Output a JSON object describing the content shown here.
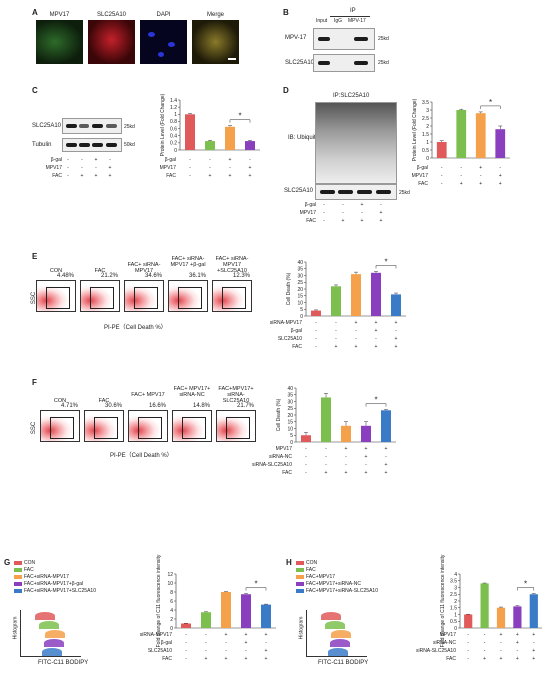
{
  "A": {
    "label": "A",
    "tiles": [
      "MPV17",
      "SLC25A10",
      "DAPI",
      "Merge"
    ]
  },
  "B": {
    "label": "B",
    "ip": "IP",
    "lanes": [
      "Input",
      "IgG",
      "MPV-17"
    ],
    "rows": [
      "MPV-17",
      "SLC25A10"
    ],
    "mw": [
      "25kd",
      "25kd"
    ]
  },
  "C": {
    "label": "C",
    "rows": [
      "SLC25A10",
      "Tubulin"
    ],
    "mw": [
      "25kd",
      "50kd"
    ],
    "treat_labels": [
      "β-gal",
      "MPV17",
      "FAC"
    ],
    "treat": [
      [
        "-",
        "-",
        "+",
        "-"
      ],
      [
        "-",
        "-",
        "-",
        "+"
      ],
      [
        "-",
        "+",
        "+",
        "+"
      ]
    ],
    "ylabel": "Protein Level (Fold Change)",
    "sig": "*",
    "chart_data": {
      "type": "bar",
      "values": [
        1.0,
        0.25,
        0.65,
        0.25
      ],
      "errors": [
        0.02,
        0.02,
        0.03,
        0.02
      ],
      "colors": [
        "#e05a5a",
        "#7dbf4e",
        "#f5a04a",
        "#8a3fbf"
      ],
      "ylim": [
        0,
        1.4
      ],
      "ticks": [
        "0",
        "0.2",
        "0.4",
        "0.6",
        "0.8",
        "1",
        "1.2",
        "1.4"
      ]
    }
  },
  "D": {
    "label": "D",
    "ip": "IP:SLC25A10",
    "ib": "IB: Ubiquitin",
    "row2": "SLC25A10",
    "mw": "25kd",
    "treat_labels": [
      "β-gal",
      "MPV17",
      "FAC"
    ],
    "treat": [
      [
        "-",
        "-",
        "+",
        "-"
      ],
      [
        "-",
        "-",
        "-",
        "+"
      ],
      [
        "-",
        "+",
        "+",
        "+"
      ]
    ],
    "ylabel": "Protein Level (Fold Change)",
    "sig": "*",
    "chart_data": {
      "type": "bar",
      "values": [
        1.0,
        3.0,
        2.8,
        1.8
      ],
      "errors": [
        0.08,
        0.05,
        0.08,
        0.2
      ],
      "colors": [
        "#e05a5a",
        "#7dbf4e",
        "#f5a04a",
        "#8a3fbf"
      ],
      "ylim": [
        0,
        3.5
      ],
      "ticks": [
        "0",
        "0.5",
        "1",
        "1.5",
        "2",
        "2.5",
        "3",
        "3.5"
      ]
    }
  },
  "E": {
    "label": "E",
    "ssc": "SSC",
    "xlab": "PI-PE（Cell Death %）",
    "plots": [
      {
        "cap": "CON",
        "pct": "4.48%"
      },
      {
        "cap": "FAC",
        "pct": "21.2%"
      },
      {
        "cap": "FAC+ siRNA-MPV17",
        "pct": "34.6%"
      },
      {
        "cap": "FAC+ siRNA-MPV17 +β-gal",
        "pct": "36.1%"
      },
      {
        "cap": "FAC+ siRNA-MPV17 +SLC25A10",
        "pct": "12.3%"
      }
    ],
    "treat_labels": [
      "siRNA-MPV17",
      "β-gal",
      "SLC25A10",
      "FAC"
    ],
    "treat": [
      [
        "-",
        "-",
        "+",
        "+",
        "+"
      ],
      [
        "-",
        "-",
        "-",
        "+",
        "-"
      ],
      [
        "-",
        "-",
        "-",
        "-",
        "+"
      ],
      [
        "-",
        "+",
        "+",
        "+",
        "+"
      ]
    ],
    "ylabel": "Cell Death (%)",
    "sig": "*",
    "chart_data": {
      "type": "bar",
      "values": [
        4,
        22,
        31,
        32,
        16
      ],
      "errors": [
        0.5,
        1,
        1.5,
        1,
        1
      ],
      "colors": [
        "#e05a5a",
        "#7dbf4e",
        "#f5a04a",
        "#8a3fbf",
        "#3a7bc8"
      ],
      "ylim": [
        0,
        40
      ],
      "ticks": [
        "0",
        "5",
        "10",
        "15",
        "20",
        "25",
        "30",
        "35",
        "40"
      ]
    }
  },
  "F": {
    "label": "F",
    "ssc": "SSC",
    "xlab": "PI-PE（Cell Death %）",
    "plots": [
      {
        "cap": "CON",
        "pct": "4.71%"
      },
      {
        "cap": "FAC",
        "pct": "30.6%"
      },
      {
        "cap": "FAC+ MPV17",
        "pct": "16.6%"
      },
      {
        "cap": "FAC+ MPV17+ siRNA-NC",
        "pct": "14.8%"
      },
      {
        "cap": "FAC+MPV17+ siRNA- SLC25A10",
        "pct": "21.7%"
      }
    ],
    "treat_labels": [
      "MPV17",
      "siRNA-NC",
      "siRNA-SLC25A10",
      "FAC"
    ],
    "treat": [
      [
        "-",
        "-",
        "+",
        "+",
        "+"
      ],
      [
        "-",
        "-",
        "-",
        "+",
        "-"
      ],
      [
        "-",
        "-",
        "-",
        "-",
        "+"
      ],
      [
        "-",
        "+",
        "+",
        "+",
        "+"
      ]
    ],
    "ylabel": "Cell Death (%)",
    "sig": "*",
    "chart_data": {
      "type": "bar",
      "values": [
        5,
        33,
        12,
        12,
        23.5
      ],
      "errors": [
        2,
        3,
        3,
        3,
        0.5
      ],
      "colors": [
        "#e05a5a",
        "#7dbf4e",
        "#f5a04a",
        "#8a3fbf",
        "#3a7bc8"
      ],
      "ylim": [
        0,
        40
      ],
      "ticks": [
        "0",
        "5",
        "10",
        "15",
        "20",
        "25",
        "30",
        "35",
        "40"
      ]
    }
  },
  "G": {
    "label": "G",
    "legend": [
      "CON",
      "FAC",
      "FAC+siRNA-MPV17",
      "FAC+siRNA-MPV17+β-gal",
      "FAC+siRNA-MPV17+SLC25A10"
    ],
    "hist_ylabel": "Histogram",
    "hist_xlabel": "FITC-C11 BODIPY",
    "treat_labels": [
      "siRNA-MPV17",
      "β-gal",
      "SLC25A10",
      "FAC"
    ],
    "treat": [
      [
        "-",
        "-",
        "+",
        "+",
        "+"
      ],
      [
        "-",
        "-",
        "-",
        "+",
        "-"
      ],
      [
        "-",
        "-",
        "-",
        "-",
        "+"
      ],
      [
        "-",
        "+",
        "+",
        "+",
        "+"
      ]
    ],
    "ylabel": "Fold change of C11 fluorescence intensity",
    "sig": "*",
    "chart_data": {
      "type": "bar",
      "values": [
        1.0,
        3.5,
        8.0,
        7.5,
        5.2
      ],
      "errors": [
        0.05,
        0.1,
        0.1,
        0.15,
        0.1
      ],
      "colors": [
        "#e05a5a",
        "#7dbf4e",
        "#f5a04a",
        "#8a3fbf",
        "#3a7bc8"
      ],
      "ylim": [
        0,
        12
      ],
      "ticks": [
        "0",
        "2",
        "4",
        "6",
        "8",
        "10",
        "12"
      ]
    }
  },
  "H": {
    "label": "H",
    "legend": [
      "CON",
      "FAC",
      "FAC+MPV17",
      "FAC+MPV17+siRNA-NC",
      "FAC+MPV17+siRNA-SLC25A10"
    ],
    "hist_ylabel": "Histogram",
    "hist_xlabel": "FITC-C11 BODIPY",
    "treat_labels": [
      "MPV17",
      "siRNA-NC",
      "siRNA-SLC25A10",
      "FAC"
    ],
    "treat": [
      [
        "-",
        "-",
        "+",
        "+",
        "+"
      ],
      [
        "-",
        "-",
        "-",
        "+",
        "-"
      ],
      [
        "-",
        "-",
        "-",
        "-",
        "+"
      ],
      [
        "-",
        "+",
        "+",
        "+",
        "+"
      ]
    ],
    "ylabel": "Fold change of C11 fluorescence intensity",
    "sig": "*",
    "chart_data": {
      "type": "bar",
      "values": [
        1.0,
        3.3,
        1.5,
        1.6,
        2.5
      ],
      "errors": [
        0.02,
        0.03,
        0.05,
        0.05,
        0.05
      ],
      "colors": [
        "#e05a5a",
        "#7dbf4e",
        "#f5a04a",
        "#8a3fbf",
        "#3a7bc8"
      ],
      "ylim": [
        0,
        4
      ],
      "ticks": [
        "0",
        "0.5",
        "1",
        "1.5",
        "2",
        "2.5",
        "3",
        "3.5",
        "4"
      ]
    }
  }
}
